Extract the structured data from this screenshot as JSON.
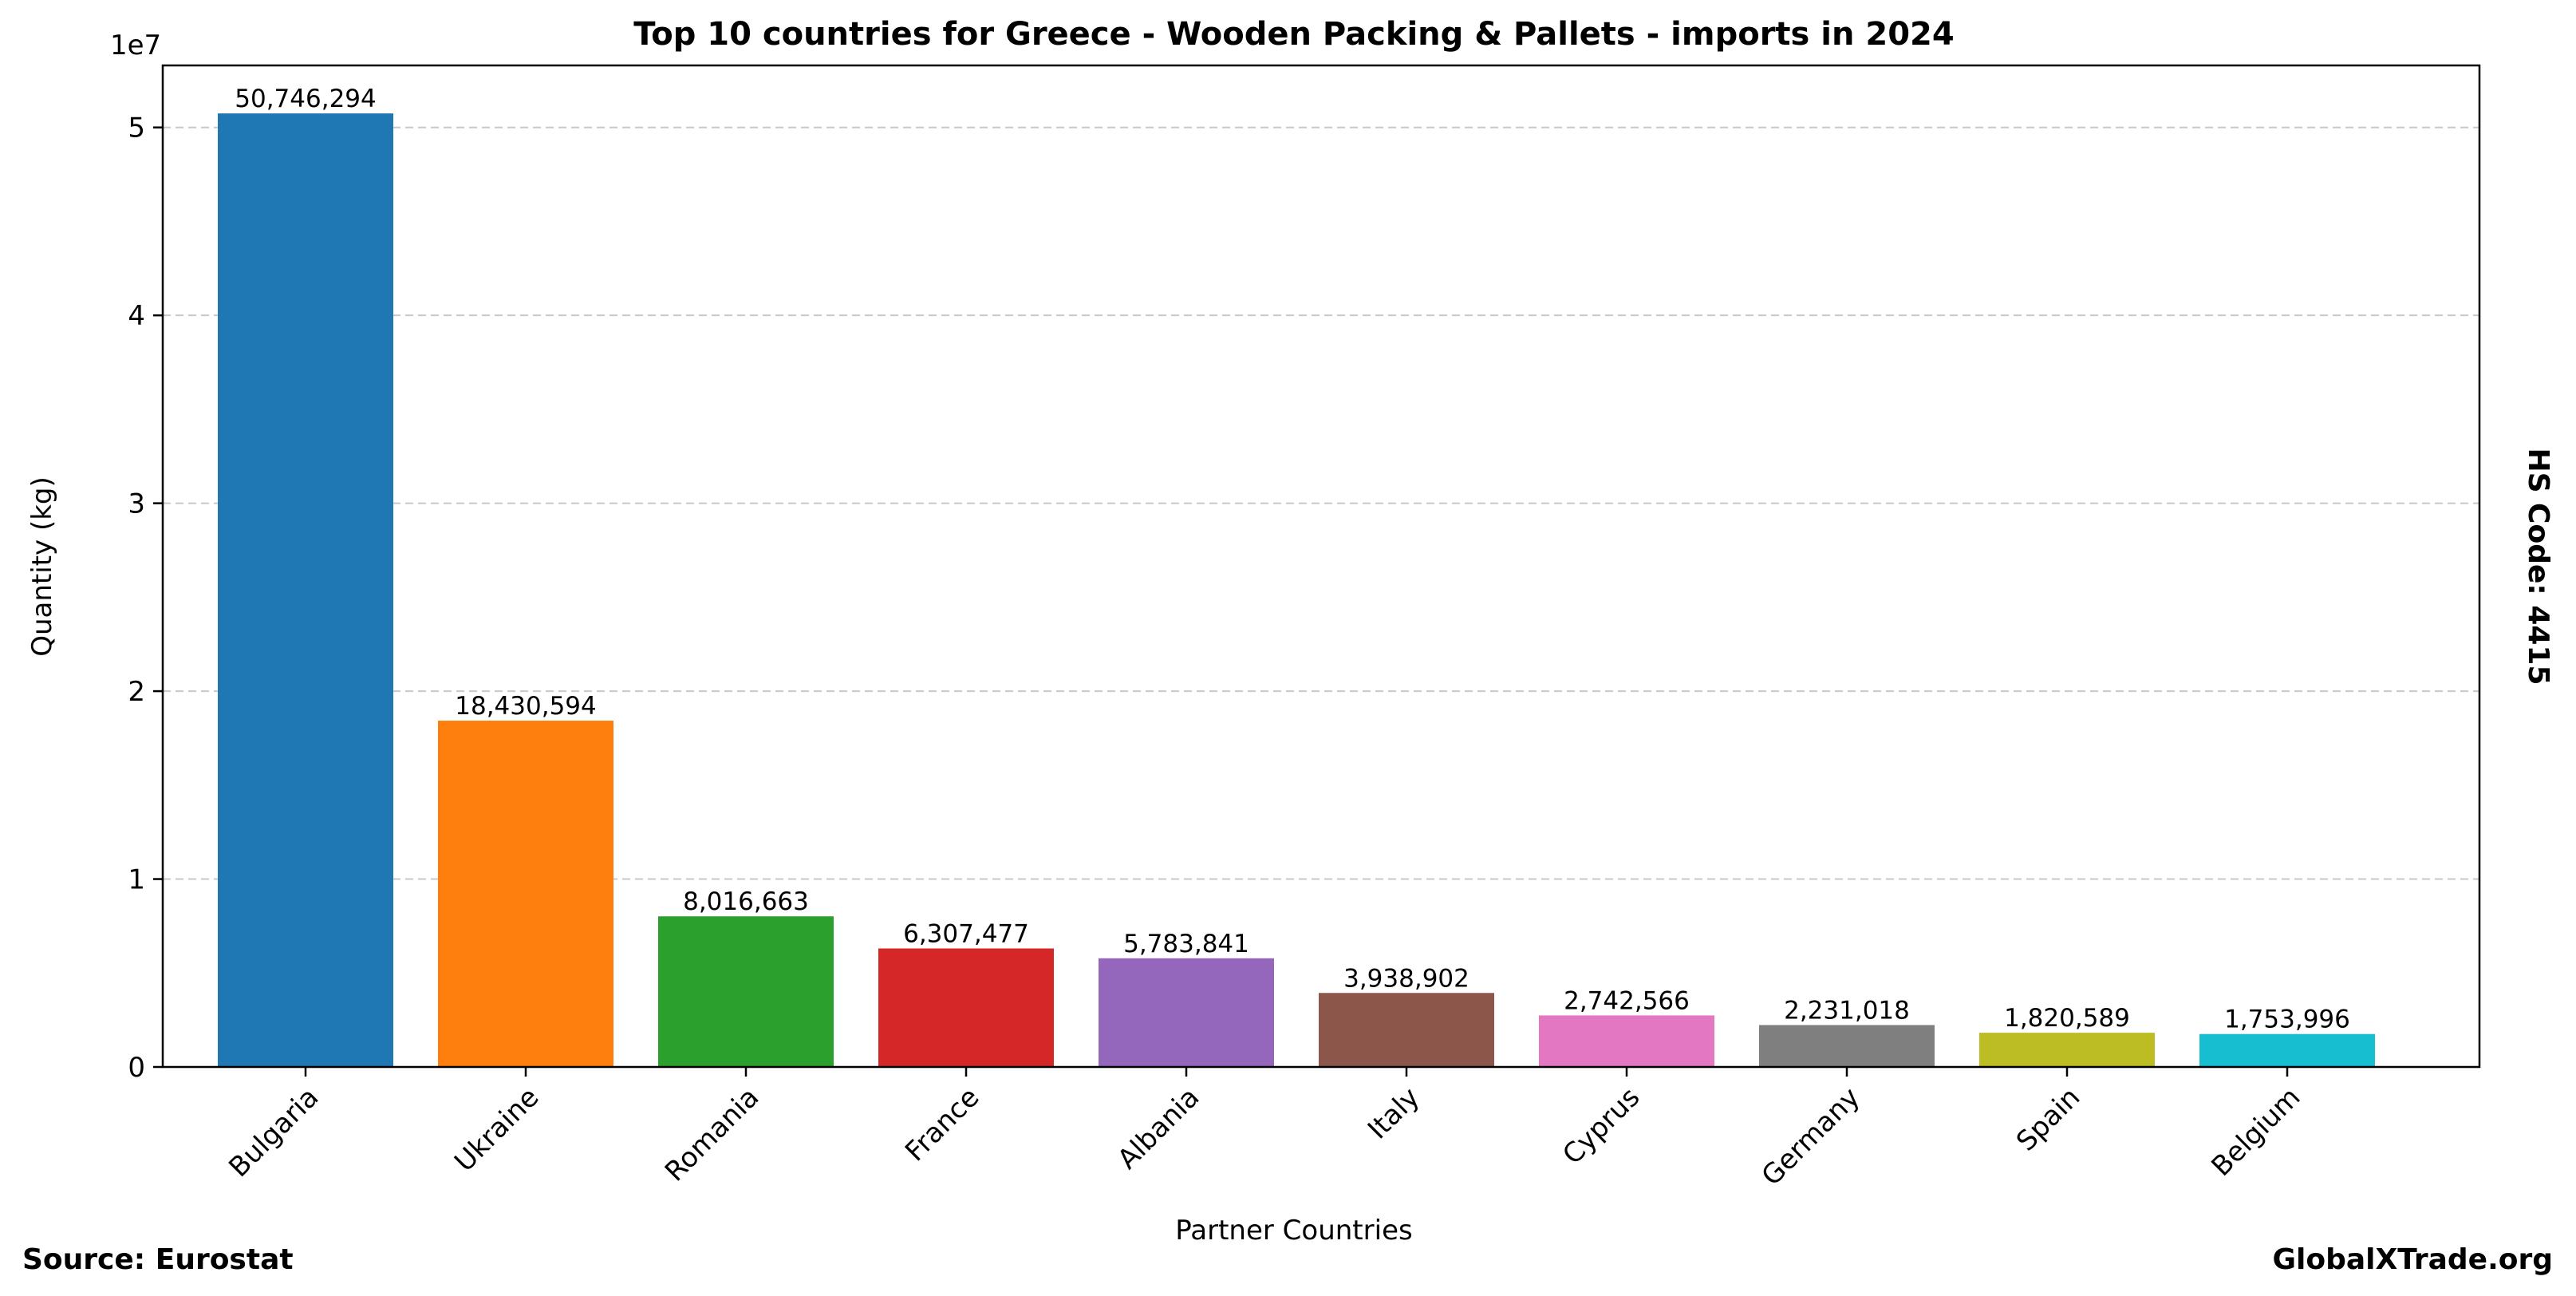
{
  "chart_data": {
    "type": "bar",
    "title": "Top 10 countries for Greece - Wooden Packing & Pallets - imports in 2024",
    "xlabel": "Partner Countries",
    "ylabel": "Quantity (kg)",
    "y_offset_label": "1e7",
    "ylim": [
      0,
      53300000
    ],
    "yticks": [
      0,
      10000000,
      20000000,
      30000000,
      40000000,
      50000000
    ],
    "ytick_labels": [
      "0",
      "1",
      "2",
      "3",
      "4",
      "5"
    ],
    "grid": "horizontal dashed",
    "categories": [
      "Bulgaria",
      "Ukraine",
      "Romania",
      "France",
      "Albania",
      "Italy",
      "Cyprus",
      "Germany",
      "Spain",
      "Belgium"
    ],
    "values": [
      50746294,
      18430594,
      8016663,
      6307477,
      5783841,
      3938902,
      2742566,
      2231018,
      1820589,
      1753996
    ],
    "value_labels": [
      "50,746,294",
      "18,430,594",
      "8,016,663",
      "6,307,477",
      "5,783,841",
      "3,938,902",
      "2,742,566",
      "2,231,018",
      "1,820,589",
      "1,753,996"
    ],
    "colors": [
      "#1f77b4",
      "#ff7f0e",
      "#2ca02c",
      "#d62728",
      "#9467bd",
      "#8c564b",
      "#e377c2",
      "#7f7f7f",
      "#bcbd22",
      "#17becf"
    ]
  },
  "side_label": "HS Code: 4415",
  "footer": {
    "source": "Source: Eurostat",
    "brand": "GlobalXTrade.org"
  }
}
